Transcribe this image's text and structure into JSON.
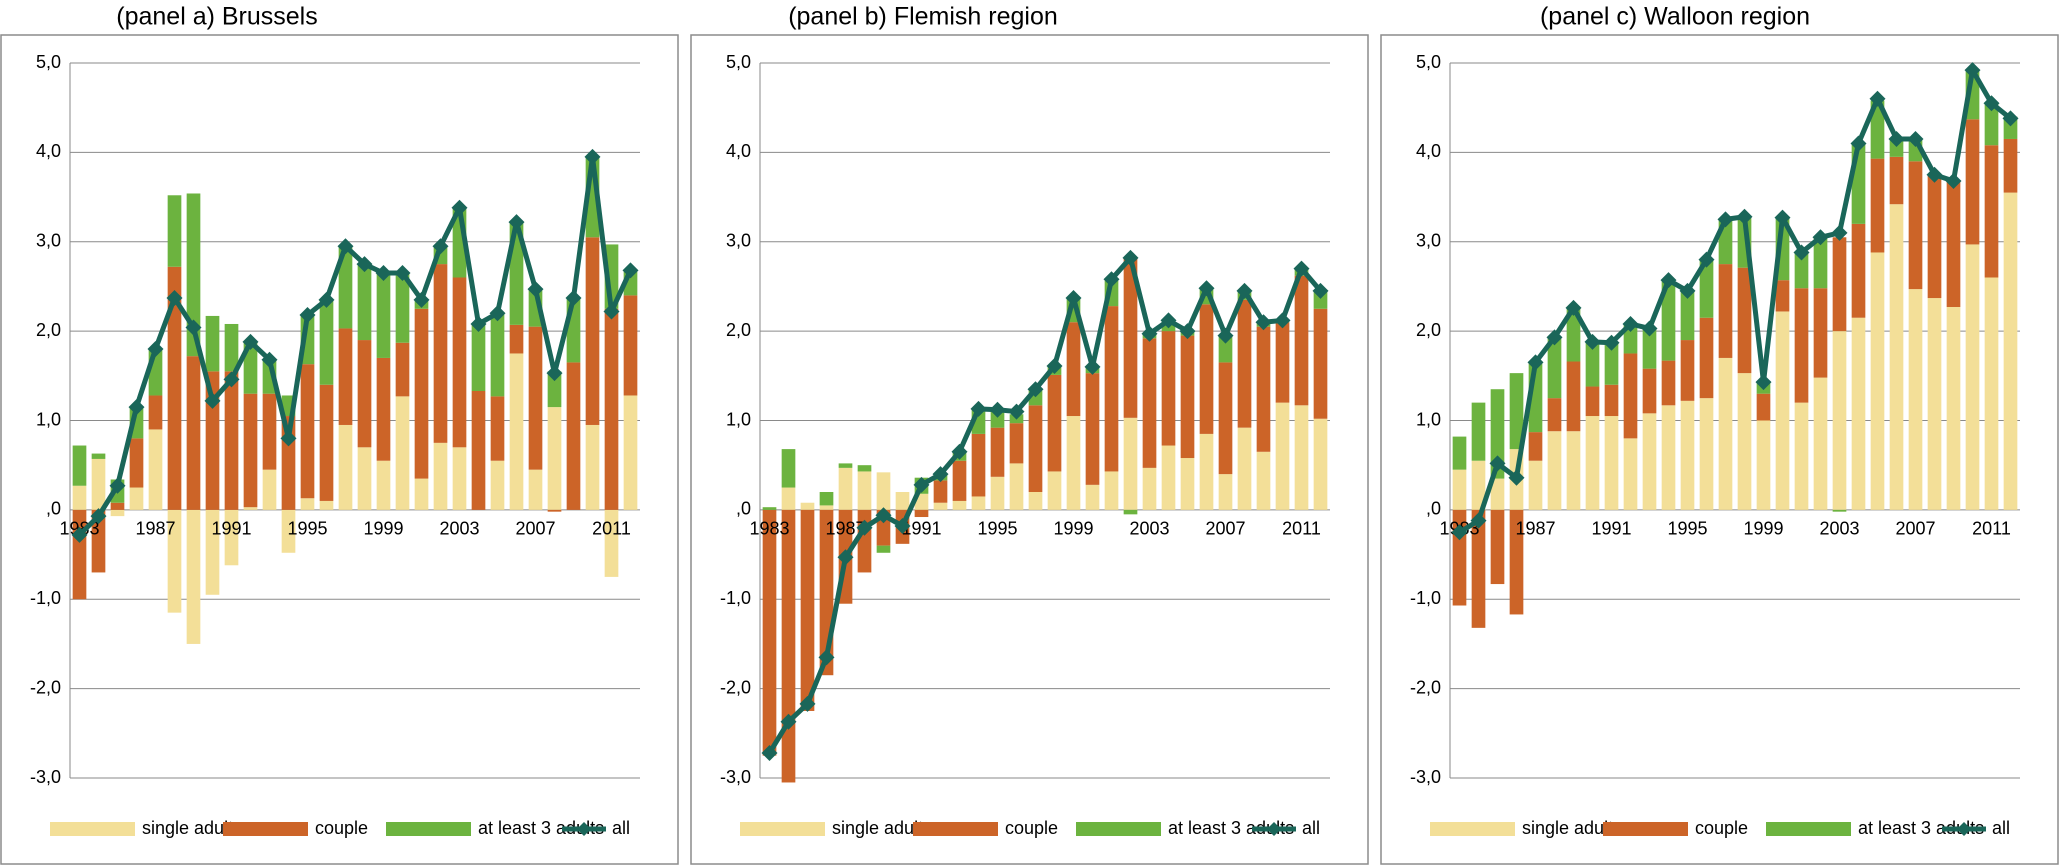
{
  "chart_data": [
    {
      "type": "bar",
      "stacked": true,
      "title": "(panel a) Brussels",
      "categories": [
        "1983",
        null,
        null,
        null,
        "1987",
        null,
        null,
        null,
        "1991",
        null,
        null,
        null,
        "1995",
        null,
        null,
        null,
        "1999",
        null,
        null,
        null,
        "2003",
        null,
        null,
        null,
        "2007",
        null,
        null,
        null,
        "2011",
        null
      ],
      "series": [
        {
          "name": "single adult",
          "color": "#f3df98",
          "values": [
            0.27,
            0.57,
            -0.07,
            0.25,
            0.9,
            -1.15,
            -1.5,
            -0.95,
            -0.62,
            0.03,
            0.45,
            -0.48,
            0.13,
            0.1,
            0.95,
            0.7,
            0.55,
            1.27,
            0.35,
            0.75,
            0.7,
            0,
            0.55,
            1.75,
            0.45,
            1.15,
            0,
            0.95,
            -0.75,
            1.28
          ]
        },
        {
          "name": "couple",
          "color": "#cc6428",
          "values": [
            -1.0,
            -0.7,
            0.08,
            0.55,
            0.38,
            2.72,
            1.72,
            1.55,
            1.55,
            1.27,
            0.85,
            1.05,
            1.5,
            1.3,
            1.08,
            1.2,
            1.15,
            0.6,
            1.9,
            2.0,
            1.9,
            1.33,
            0.72,
            0.32,
            1.6,
            -0.02,
            1.65,
            2.1,
            2.25,
            1.12
          ]
        },
        {
          "name": "at least 3 adults",
          "color": "#6cb33f",
          "values": [
            0.45,
            0.06,
            0.26,
            0.35,
            0.52,
            0.8,
            1.82,
            0.62,
            0.53,
            0.58,
            0.38,
            0.23,
            0.55,
            0.95,
            0.92,
            0.85,
            0.95,
            0.78,
            0.1,
            0.2,
            0.78,
            0.75,
            0.93,
            1.15,
            0.42,
            0.4,
            0.72,
            0.9,
            0.72,
            0.28
          ]
        },
        {
          "name": "all",
          "color": "#1a6659",
          "type": "line",
          "marker": "diamond",
          "values": [
            -0.28,
            -0.07,
            0.27,
            1.15,
            1.8,
            2.37,
            2.04,
            1.22,
            1.46,
            1.88,
            1.68,
            0.8,
            2.18,
            2.35,
            2.95,
            2.75,
            2.65,
            2.65,
            2.35,
            2.95,
            3.38,
            2.08,
            2.2,
            3.22,
            2.47,
            1.53,
            2.37,
            3.95,
            2.22,
            2.68
          ]
        }
      ],
      "ylim": [
        -3,
        5
      ],
      "yticks": [
        {
          "value": -3,
          "label": "-3,0"
        },
        {
          "value": -2,
          "label": "-2,0"
        },
        {
          "value": -1,
          "label": "-1,0"
        },
        {
          "value": 0,
          "label": ",0"
        },
        {
          "value": 1,
          "label": "1,0"
        },
        {
          "value": 2,
          "label": "2,0"
        },
        {
          "value": 3,
          "label": "3,0"
        },
        {
          "value": 4,
          "label": "4,0"
        },
        {
          "value": 5,
          "label": "5,0"
        }
      ],
      "grid": true,
      "legend": "bottom"
    },
    {
      "type": "bar",
      "stacked": true,
      "title": "(panel b) Flemish region",
      "categories": [
        "1983",
        null,
        null,
        null,
        "1987",
        null,
        null,
        null,
        "1991",
        null,
        null,
        null,
        "1995",
        null,
        null,
        null,
        "1999",
        null,
        null,
        null,
        "2003",
        null,
        null,
        null,
        "2007",
        null,
        null,
        null,
        "2011",
        null
      ],
      "series": [
        {
          "name": "single adult",
          "color": "#f3df98",
          "values": [
            0,
            0.25,
            0.08,
            0.05,
            0.47,
            0.43,
            0.42,
            0.2,
            0.18,
            0.08,
            0.1,
            0.15,
            0.37,
            0.52,
            0.2,
            0.43,
            1.05,
            0.28,
            0.43,
            1.03,
            0.47,
            0.72,
            0.58,
            0.85,
            0.4,
            0.92,
            0.65,
            1.2,
            1.17,
            1.02
          ]
        },
        {
          "name": "couple",
          "color": "#cc6428",
          "values": [
            -2.75,
            -3.05,
            -2.25,
            -1.85,
            -1.05,
            -0.7,
            -0.4,
            -0.38,
            -0.08,
            0.25,
            0.45,
            0.7,
            0.55,
            0.45,
            0.97,
            1.08,
            1.05,
            1.25,
            1.85,
            1.8,
            1.45,
            1.28,
            1.37,
            1.45,
            1.25,
            1.43,
            1.4,
            0.9,
            1.45,
            1.23
          ]
        },
        {
          "name": "at least 3 adults",
          "color": "#6cb33f",
          "values": [
            0.03,
            0.43,
            0,
            0.15,
            0.05,
            0.07,
            -0.08,
            0,
            0.18,
            0.07,
            0.1,
            0.28,
            0.2,
            0.1,
            0.18,
            0.1,
            0.27,
            0.07,
            0.3,
            -0.05,
            0.05,
            0.12,
            0.05,
            0.18,
            0.3,
            0.1,
            0.05,
            0.02,
            0.08,
            0.2
          ]
        },
        {
          "name": "all",
          "color": "#1a6659",
          "type": "line",
          "marker": "diamond",
          "values": [
            -2.72,
            -2.37,
            -2.17,
            -1.65,
            -0.53,
            -0.2,
            -0.06,
            -0.18,
            0.28,
            0.4,
            0.65,
            1.13,
            1.12,
            1.1,
            1.35,
            1.61,
            2.37,
            1.6,
            2.58,
            2.82,
            1.97,
            2.12,
            2.0,
            2.48,
            1.95,
            2.45,
            2.1,
            2.12,
            2.7,
            2.45
          ]
        }
      ],
      "ylim": [
        -3,
        5
      ],
      "yticks": [
        {
          "value": -3,
          "label": "-3,0"
        },
        {
          "value": -2,
          "label": "-2,0"
        },
        {
          "value": -1,
          "label": "-1,0"
        },
        {
          "value": 0,
          "label": ",0"
        },
        {
          "value": 1,
          "label": "1,0"
        },
        {
          "value": 2,
          "label": "2,0"
        },
        {
          "value": 3,
          "label": "3,0"
        },
        {
          "value": 4,
          "label": "4,0"
        },
        {
          "value": 5,
          "label": "5,0"
        }
      ],
      "grid": true,
      "legend": "bottom"
    },
    {
      "type": "bar",
      "stacked": true,
      "title": "(panel c) Walloon region",
      "categories": [
        "1983",
        null,
        null,
        null,
        "1987",
        null,
        null,
        null,
        "1991",
        null,
        null,
        null,
        "1995",
        null,
        null,
        null,
        "1999",
        null,
        null,
        null,
        "2003",
        null,
        null,
        null,
        "2007",
        null,
        null,
        null,
        "2011",
        null
      ],
      "series": [
        {
          "name": "single adult",
          "color": "#f3df98",
          "values": [
            0.45,
            0.55,
            0.35,
            0.68,
            0.55,
            0.88,
            0.88,
            1.05,
            1.05,
            0.8,
            1.08,
            1.17,
            1.22,
            1.25,
            1.7,
            1.53,
            1.0,
            2.22,
            1.2,
            1.48,
            2.0,
            2.15,
            2.88,
            3.42,
            2.47,
            2.37,
            2.27,
            2.97,
            2.6,
            3.55
          ]
        },
        {
          "name": "couple",
          "color": "#cc6428",
          "values": [
            -1.07,
            -1.32,
            -0.83,
            -1.17,
            0.32,
            0.37,
            0.78,
            0.33,
            0.35,
            0.95,
            0.5,
            0.5,
            0.68,
            0.9,
            1.05,
            1.18,
            0.3,
            0.35,
            1.28,
            1.0,
            1.05,
            1.05,
            1.05,
            0.53,
            1.43,
            1.37,
            1.4,
            1.4,
            1.48,
            0.6
          ]
        },
        {
          "name": "at least 3 adults",
          "color": "#6cb33f",
          "values": [
            0.37,
            0.65,
            1.0,
            0.85,
            0.78,
            0.68,
            0.6,
            0.5,
            0.47,
            0.33,
            0.45,
            0.9,
            0.55,
            0.65,
            0.5,
            0.57,
            0.13,
            0.7,
            0.4,
            0.57,
            -0.02,
            0.9,
            0.65,
            0.2,
            0.25,
            0.02,
            0,
            0.55,
            0.47,
            0.25
          ]
        },
        {
          "name": "all",
          "color": "#1a6659",
          "type": "line",
          "marker": "diamond",
          "values": [
            -0.25,
            -0.12,
            0.52,
            0.36,
            1.65,
            1.93,
            2.26,
            1.88,
            1.87,
            2.08,
            2.03,
            2.57,
            2.45,
            2.8,
            3.25,
            3.28,
            1.43,
            3.27,
            2.88,
            3.05,
            3.1,
            4.1,
            4.6,
            4.15,
            4.15,
            3.75,
            3.68,
            4.92,
            4.55,
            4.38
          ]
        }
      ],
      "ylim": [
        -3,
        5
      ],
      "yticks": [
        {
          "value": -3,
          "label": "-3,0"
        },
        {
          "value": -2,
          "label": "-2,0"
        },
        {
          "value": -1,
          "label": "-1,0"
        },
        {
          "value": 0,
          "label": ",0"
        },
        {
          "value": 1,
          "label": "1,0"
        },
        {
          "value": 2,
          "label": "2,0"
        },
        {
          "value": 3,
          "label": "3,0"
        },
        {
          "value": 4,
          "label": "4,0"
        },
        {
          "value": 5,
          "label": "5,0"
        }
      ],
      "grid": true,
      "legend": "bottom"
    }
  ]
}
